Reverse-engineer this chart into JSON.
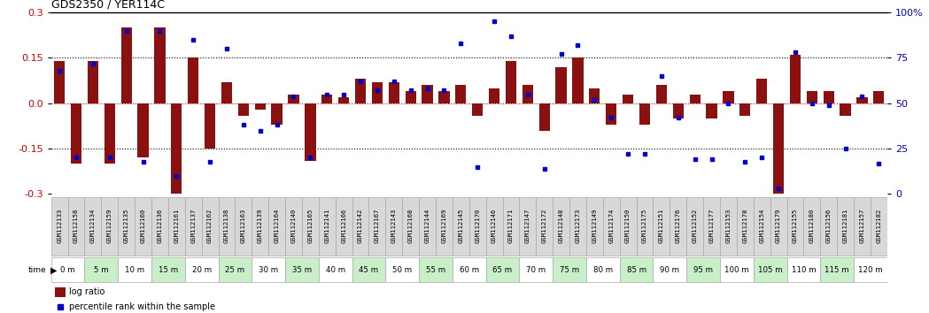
{
  "title": "GDS2350 / YER114C",
  "samples": [
    "GSM112133",
    "GSM112158",
    "GSM112134",
    "GSM112159",
    "GSM112135",
    "GSM112160",
    "GSM112136",
    "GSM112161",
    "GSM112137",
    "GSM112162",
    "GSM112138",
    "GSM112163",
    "GSM112139",
    "GSM112164",
    "GSM112140",
    "GSM112165",
    "GSM112141",
    "GSM112166",
    "GSM112142",
    "GSM112167",
    "GSM112143",
    "GSM112168",
    "GSM112144",
    "GSM112169",
    "GSM112145",
    "GSM112170",
    "GSM112146",
    "GSM112171",
    "GSM112147",
    "GSM112172",
    "GSM112148",
    "GSM112173",
    "GSM112149",
    "GSM112174",
    "GSM112150",
    "GSM112175",
    "GSM112151",
    "GSM112176",
    "GSM112152",
    "GSM112177",
    "GSM112153",
    "GSM112178",
    "GSM112154",
    "GSM112179",
    "GSM112155",
    "GSM112180",
    "GSM112156",
    "GSM112181",
    "GSM112157",
    "GSM112182"
  ],
  "time_labels": [
    "0 m",
    "5 m",
    "10 m",
    "15 m",
    "20 m",
    "25 m",
    "30 m",
    "35 m",
    "40 m",
    "45 m",
    "50 m",
    "55 m",
    "60 m",
    "65 m",
    "70 m",
    "75 m",
    "80 m",
    "85 m",
    "90 m",
    "95 m",
    "100 m",
    "105 m",
    "110 m",
    "115 m",
    "120 m"
  ],
  "log_ratio": [
    0.14,
    -0.2,
    0.14,
    -0.2,
    0.25,
    -0.18,
    0.25,
    -0.3,
    0.15,
    -0.15,
    0.07,
    -0.04,
    -0.02,
    -0.07,
    0.03,
    -0.19,
    0.03,
    0.02,
    0.08,
    0.07,
    0.07,
    0.04,
    0.06,
    0.04,
    0.06,
    -0.04,
    0.05,
    0.14,
    0.06,
    -0.09,
    0.12,
    0.15,
    0.05,
    -0.07,
    0.03,
    -0.07,
    0.06,
    -0.05,
    0.03,
    -0.05,
    0.04,
    -0.04,
    0.08,
    -0.32,
    0.16,
    0.04,
    0.04,
    -0.04,
    0.02,
    0.04
  ],
  "percentile_rank": [
    68,
    20,
    72,
    20,
    90,
    18,
    90,
    10,
    85,
    18,
    80,
    38,
    35,
    38,
    54,
    20,
    55,
    55,
    62,
    57,
    62,
    57,
    58,
    57,
    83,
    15,
    95,
    87,
    55,
    14,
    77,
    82,
    52,
    42,
    22,
    22,
    65,
    42,
    19,
    19,
    50,
    18,
    20,
    3,
    78,
    50,
    49,
    25,
    54,
    17
  ],
  "bar_color": "#8B1010",
  "dot_color": "#0000CC",
  "ylim_left": [
    -0.3,
    0.3
  ],
  "ylim_right": [
    0,
    100
  ],
  "yticks_left": [
    -0.3,
    -0.15,
    0.0,
    0.15,
    0.3
  ],
  "yticks_right": [
    0,
    25,
    50,
    75,
    100
  ],
  "hline_dotted_vals": [
    0.15,
    -0.15
  ],
  "hline_zero_color": "#CC0000",
  "background_color": "#ffffff",
  "time_row_color_odd": "#ffffff",
  "time_row_color_even": "#c8efc8",
  "gsm_row_color": "#d8d8d8",
  "gsm_row_border": "#aaaaaa",
  "ylabel_left_color": "#CC0000",
  "ylabel_right_color": "#0000CC"
}
